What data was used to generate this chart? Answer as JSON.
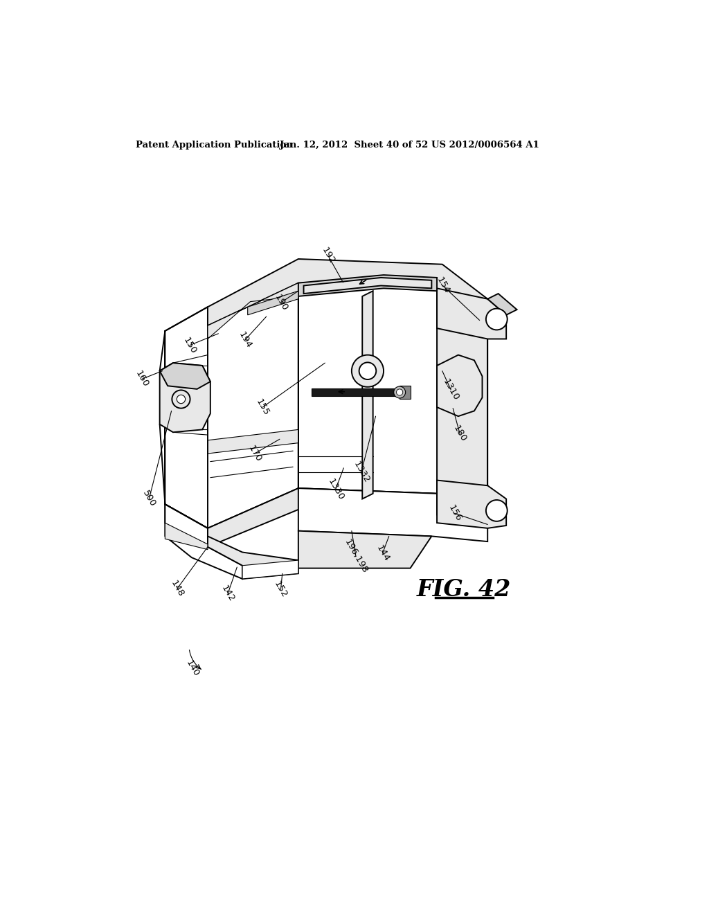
{
  "background_color": "#ffffff",
  "header_left": "Patent Application Publication",
  "header_mid": "Jan. 12, 2012  Sheet 40 of 52",
  "header_right": "US 2012/0006564 A1",
  "figure_label": "FIG. 42",
  "line_color": "#000000",
  "lw_main": 1.4,
  "lw_thin": 0.8
}
